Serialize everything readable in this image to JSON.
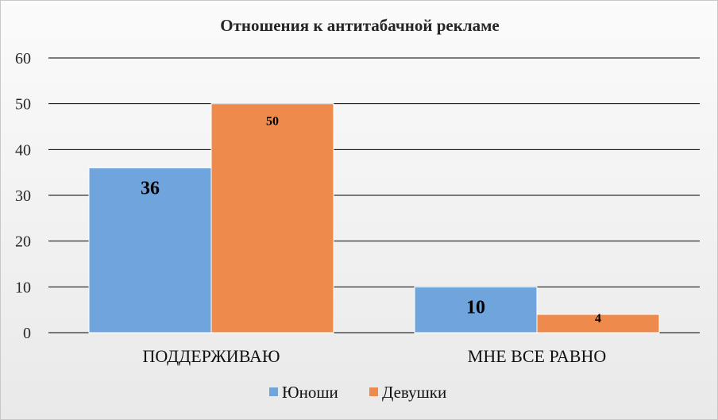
{
  "chart_data": {
    "type": "bar",
    "title": "Отношения  к  антитабачной  рекламе",
    "categories": [
      "ПОДДЕРЖИВАЮ",
      "МНЕ ВСЕ РАВНО"
    ],
    "series": [
      {
        "name": "Юноши",
        "values": [
          36,
          10
        ],
        "color": "#6fa5dc"
      },
      {
        "name": "Девушки",
        "values": [
          50,
          4
        ],
        "color": "#ee8b4c"
      }
    ],
    "ylim": [
      0,
      60
    ],
    "yticks": [
      "0",
      "10",
      "20",
      "30",
      "40",
      "50",
      "60"
    ],
    "data_labels": [
      [
        "36",
        "10"
      ],
      [
        "50",
        "4"
      ]
    ],
    "grid": true,
    "legend_position": "bottom"
  }
}
